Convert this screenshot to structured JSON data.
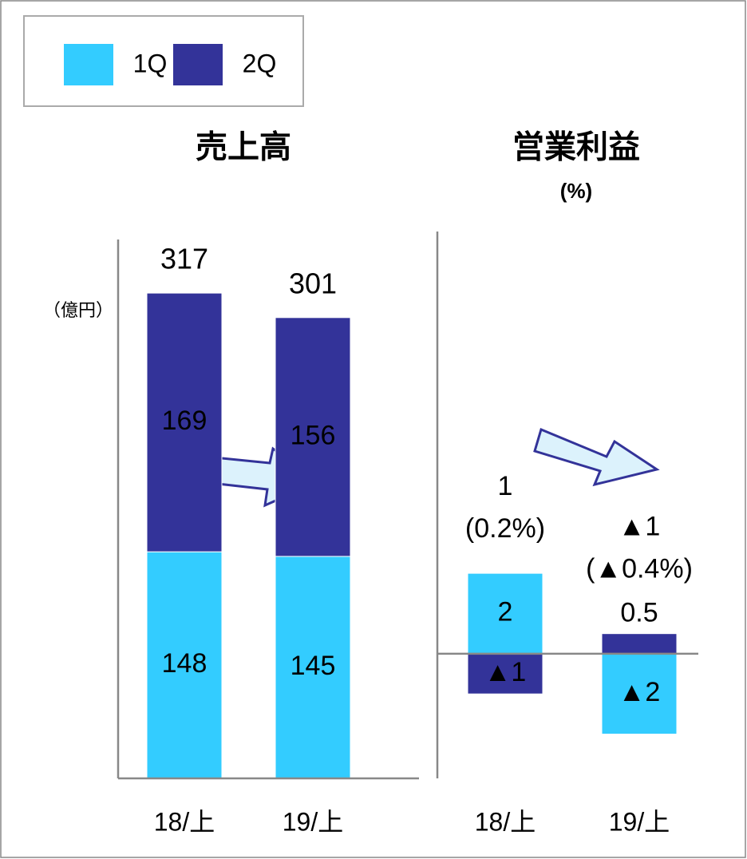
{
  "chart_data": [
    {
      "type": "bar",
      "stacked": true,
      "title": "売上高",
      "unit": "（億円）",
      "categories": [
        "18/上",
        "19/上"
      ],
      "series": [
        {
          "name": "1Q",
          "color": "#33ccff",
          "values": [
            148,
            145
          ]
        },
        {
          "name": "2Q",
          "color": "#333399",
          "values": [
            169,
            156
          ]
        }
      ],
      "totals": [
        317,
        301
      ],
      "ylim": [
        0,
        352
      ]
    },
    {
      "type": "bar",
      "stacked": true,
      "title": "営業利益",
      "subtitle": "(%)",
      "categories": [
        "18/上",
        "19/上"
      ],
      "series": [
        {
          "color": "#33ccff",
          "values": [
            2,
            -2
          ],
          "value_labels": [
            "2",
            "▲2"
          ]
        },
        {
          "color": "#333399",
          "values": [
            -1,
            0.5
          ],
          "value_labels": [
            "▲1",
            "0.5"
          ]
        }
      ],
      "totals": [
        1,
        -1
      ],
      "total_labels": [
        "1",
        "▲1"
      ],
      "margins": [
        0.2,
        -0.4
      ],
      "margin_labels": [
        "(0.2%)",
        "(▲0.4%)"
      ],
      "ylim": [
        -3.1,
        10.5
      ]
    }
  ]
}
